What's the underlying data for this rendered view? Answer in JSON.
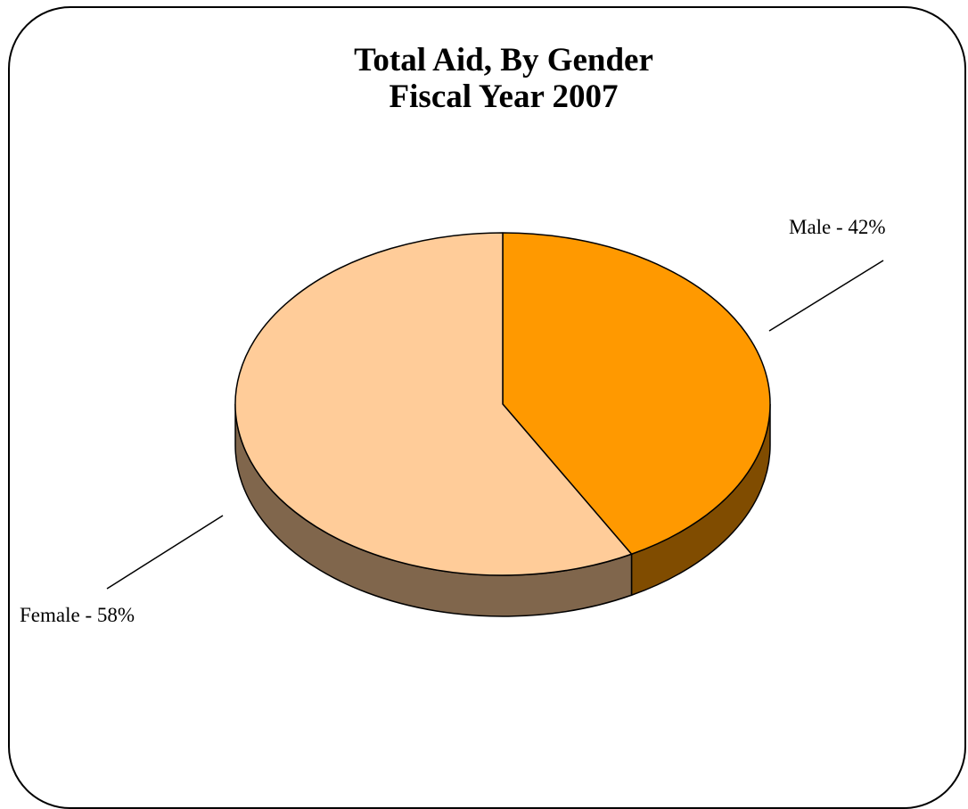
{
  "chart_data": {
    "type": "pie",
    "title": "Total Aid, By Gender",
    "subtitle": "Fiscal Year 2007",
    "three_d": true,
    "slices": [
      {
        "name": "Male",
        "value": 42,
        "label": "Male - 42%",
        "color": "#FF9900",
        "side_color": "#804C00"
      },
      {
        "name": "Female",
        "value": 58,
        "label": "Female - 58%",
        "color": "#FFCC99",
        "side_color": "#80664C"
      }
    ]
  }
}
